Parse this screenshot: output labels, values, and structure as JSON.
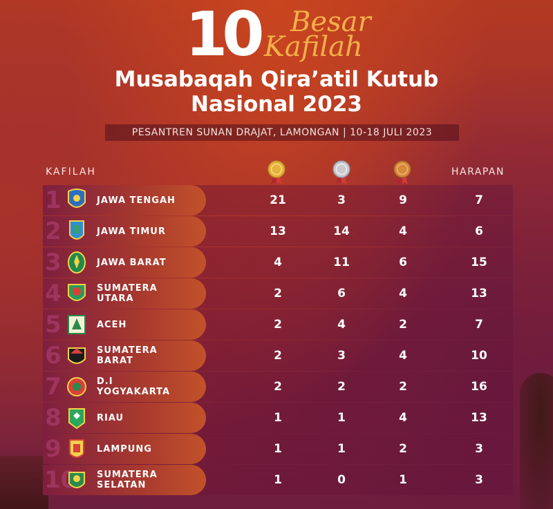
{
  "header": {
    "number": "10",
    "script_line1": "Besar",
    "script_line2": "Kafilah",
    "title_line1": "Musabaqah Qira’atil Kutub",
    "title_line2": "Nasional 2023",
    "subtitle": "PESANTREN SUNAN DRAJAT, LAMONGAN | 10-18 JULI 2023"
  },
  "table": {
    "col_kafilah": "KAFILAH",
    "col_harapan": "HARAPAN",
    "medal_icons": [
      "gold-medal-icon",
      "silver-medal-icon",
      "bronze-medal-icon"
    ],
    "colors": {
      "gold": "#e7b23a",
      "silver": "#c9c9cf",
      "bronze": "#d7893a"
    },
    "rows": [
      {
        "rank": "1",
        "name": "JAWA TENGAH",
        "gold": "21",
        "silver": "3",
        "bronze": "9",
        "harapan": "7"
      },
      {
        "rank": "2",
        "name": "JAWA TIMUR",
        "gold": "13",
        "silver": "14",
        "bronze": "4",
        "harapan": "6"
      },
      {
        "rank": "3",
        "name": "JAWA BARAT",
        "gold": "4",
        "silver": "11",
        "bronze": "6",
        "harapan": "15"
      },
      {
        "rank": "4",
        "name": "SUMATERA\nUTARA",
        "gold": "2",
        "silver": "6",
        "bronze": "4",
        "harapan": "13"
      },
      {
        "rank": "5",
        "name": "ACEH",
        "gold": "2",
        "silver": "4",
        "bronze": "2",
        "harapan": "7"
      },
      {
        "rank": "6",
        "name": "SUMATERA\nBARAT",
        "gold": "2",
        "silver": "3",
        "bronze": "4",
        "harapan": "10"
      },
      {
        "rank": "7",
        "name": "D.I\nYOGYAKARTA",
        "gold": "2",
        "silver": "2",
        "bronze": "2",
        "harapan": "16"
      },
      {
        "rank": "8",
        "name": "RIAU",
        "gold": "1",
        "silver": "1",
        "bronze": "4",
        "harapan": "13"
      },
      {
        "rank": "9",
        "name": "LAMPUNG",
        "gold": "1",
        "silver": "1",
        "bronze": "2",
        "harapan": "3"
      },
      {
        "rank": "10",
        "name": "SUMATERA\nSELATAN",
        "gold": "1",
        "silver": "0",
        "bronze": "1",
        "harapan": "3"
      }
    ]
  }
}
